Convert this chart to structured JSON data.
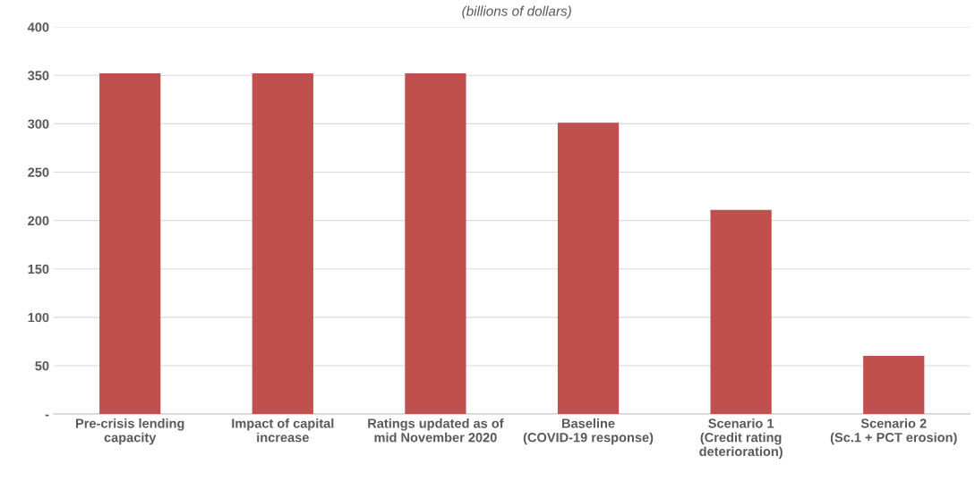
{
  "chart_data": {
    "type": "bar",
    "subtitle": "(billions of dollars)",
    "categories": [
      "Pre-crisis lending\ncapacity",
      "Impact of capital\nincrease",
      "Ratings updated as of\nmid November 2020",
      "Baseline\n(COVID-19 response)",
      "Scenario 1\n(Credit rating\ndeterioration)",
      "Scenario 2\n(Sc.1 + PCT erosion)"
    ],
    "values": [
      352,
      352,
      352,
      301,
      211,
      60
    ],
    "color": "#c0504d",
    "ylim": [
      0,
      400
    ],
    "yticks": [
      {
        "value": 0,
        "label": "-"
      },
      50,
      100,
      150,
      200,
      250,
      300,
      350,
      400
    ],
    "grid": "y"
  }
}
